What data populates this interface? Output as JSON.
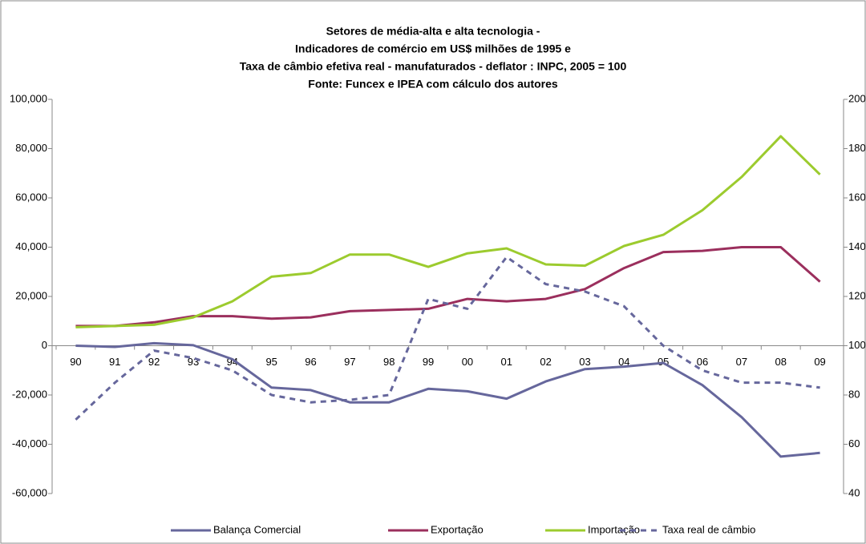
{
  "chart_data": {
    "type": "line",
    "title": [
      "Setores de média-alta e alta tecnologia -",
      "Indicadores de comércio em US$ milhões de 1995 e",
      "Taxa de câmbio  efetiva real  - manufaturados  - deflator : INPC, 2005 = 100",
      "Fonte: Funcex e IPEA com cálculo dos autores"
    ],
    "categories": [
      "90",
      "91",
      "92",
      "93",
      "94",
      "95",
      "96",
      "97",
      "98",
      "99",
      "00",
      "01",
      "02",
      "03",
      "04",
      "05",
      "06",
      "07",
      "08",
      "09"
    ],
    "series": [
      {
        "name": "Balança Comercial",
        "color": "#66679c",
        "dashed": false,
        "values": [
          0,
          -500,
          1000,
          200,
          -5500,
          -17000,
          -18000,
          -23000,
          -23000,
          -17500,
          -18500,
          -21500,
          -14500,
          -9500,
          -8500,
          -7000,
          -16000,
          -29000,
          -45000,
          -43500
        ]
      },
      {
        "name": "Exportação",
        "color": "#9b2f5d",
        "dashed": false,
        "values": [
          8000,
          8000,
          9500,
          12000,
          12000,
          11000,
          11500,
          14000,
          14500,
          15000,
          19000,
          18000,
          19000,
          23000,
          31500,
          38000,
          38500,
          40000,
          40000,
          26000
        ]
      },
      {
        "name": "Importação",
        "color": "#9ccb2e",
        "dashed": false,
        "values": [
          7500,
          8000,
          8500,
          11500,
          18000,
          28000,
          29500,
          37000,
          37000,
          32000,
          37500,
          39500,
          33000,
          32500,
          40500,
          45000,
          55000,
          68500,
          85000,
          69500
        ]
      },
      {
        "name": "Taxa real de câmbio",
        "color": "#66679c",
        "dashed": true,
        "axis": "y2",
        "values": [
          70,
          85,
          98,
          95,
          90,
          80,
          77,
          78,
          80,
          119,
          115,
          136,
          125,
          122,
          116,
          100,
          90,
          85,
          85,
          83
        ]
      }
    ],
    "ylim": [
      -60000,
      100000
    ],
    "yticks": [
      {
        "value": -60000,
        "label": "-60,000"
      },
      {
        "value": -40000,
        "label": "-40,000"
      },
      {
        "value": -20000,
        "label": "-20,000"
      },
      0,
      {
        "value": 20000,
        "label": "20,000"
      },
      {
        "value": 40000,
        "label": "40,000"
      },
      {
        "value": 60000,
        "label": "60,000"
      },
      {
        "value": 80000,
        "label": "80,000"
      },
      {
        "value": 100000,
        "label": "100,000"
      }
    ],
    "y2lim": [
      40,
      200
    ],
    "y2ticks": [
      40,
      60,
      80,
      100,
      120,
      140,
      160,
      180,
      200
    ],
    "grid": false,
    "legend": "bottom"
  }
}
